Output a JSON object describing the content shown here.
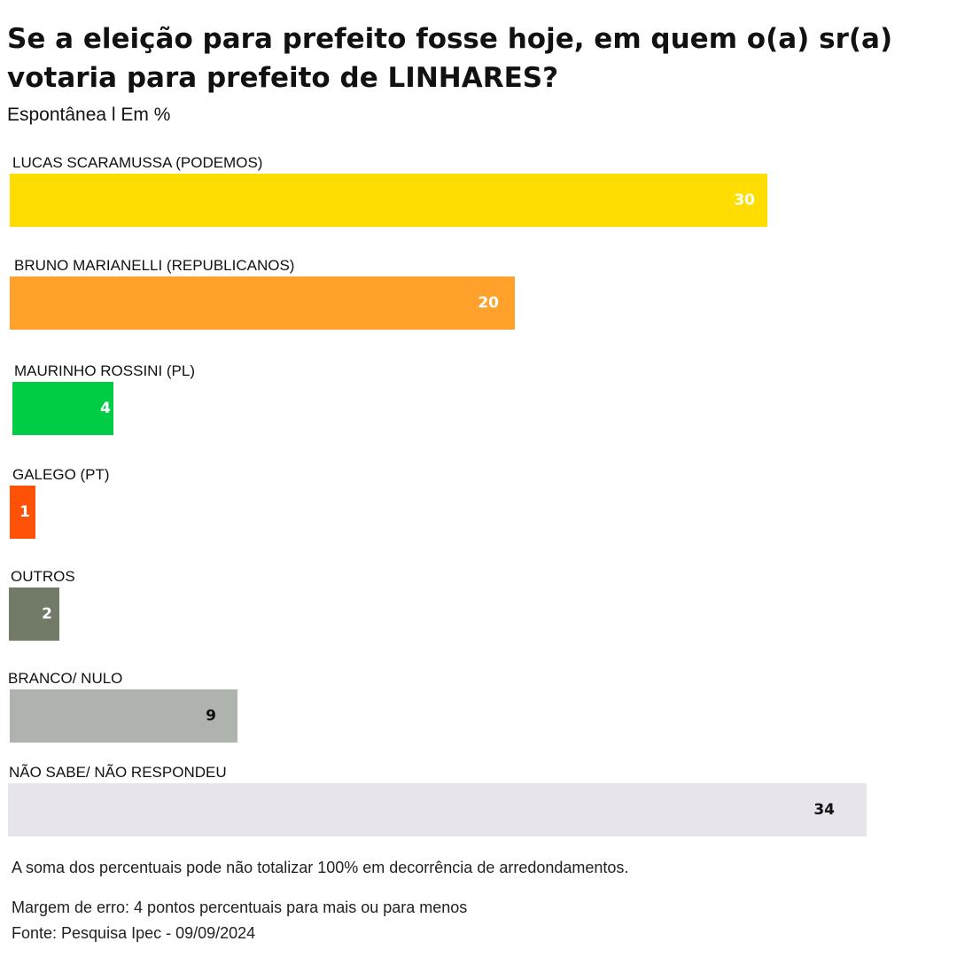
{
  "title": "Se a eleição para prefeito fosse hoje, em quem o(a) sr(a) votaria para prefeito de LINHARES?",
  "subtitle": "Espontânea l Em %",
  "chart_data": {
    "type": "bar",
    "orientation": "horizontal",
    "categories": [
      "LUCAS SCARAMUSSA  (PODEMOS)",
      "BRUNO MARIANELLI  (REPUBLICANOS)",
      "MAURINHO ROSSINI  (PL)",
      "GALEGO  (PT)",
      "OUTROS",
      "BRANCO/ NULO",
      "NÃO SABE/ NÃO RESPONDEU"
    ],
    "values": [
      30,
      20,
      4,
      1,
      2,
      9,
      34
    ],
    "data_labels": [
      "30",
      "20",
      "4",
      "1",
      "2",
      "9",
      "34"
    ],
    "colors": [
      "#FFDD00",
      "#FFA12B",
      "#00CC44",
      "#FF5208",
      "#727A68",
      "#AEB3AD",
      "#E8E4EC"
    ],
    "label_colors": [
      "#ffffff",
      "#ffffff",
      "#ffffff",
      "#ffffff",
      "#ffffff",
      "#111111",
      "#111111"
    ],
    "grid": false,
    "legend": "none"
  },
  "footnotes": {
    "rounding": "A soma dos percentuais pode não totalizar 100% em decorrência de arredondamentos.",
    "margin": "Margem de erro: 4 pontos percentuais para mais ou para menos",
    "source": "Fonte: Pesquisa Ipec - 09/09/2024"
  }
}
